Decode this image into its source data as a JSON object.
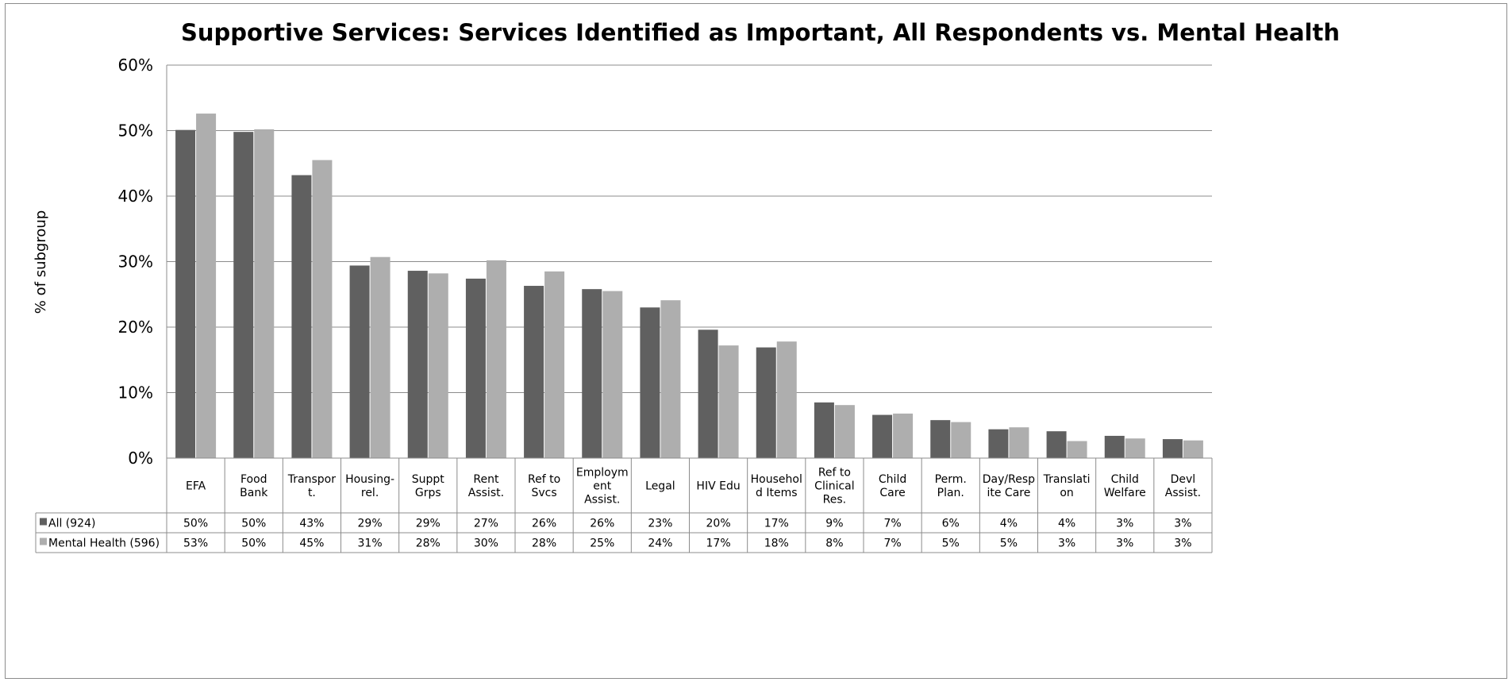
{
  "chart_data": {
    "type": "bar",
    "title": "Supportive Services: Services Identified as Important, All Respondents vs. Mental Health",
    "ylabel": "% of subgroup",
    "xlabel": "",
    "ylim": [
      0,
      60
    ],
    "yticks": [
      "0%",
      "10%",
      "20%",
      "30%",
      "40%",
      "50%",
      "60%"
    ],
    "grid": true,
    "legend": "table-left",
    "categories": [
      "EFA",
      "Food Bank",
      "Transport.",
      "Housing-rel.",
      "Suppt Grps",
      "Rent Assist.",
      "Ref to Svcs",
      "Employment Assist.",
      "Legal",
      "HIV Edu",
      "Household Items",
      "Ref to Clinical Res.",
      "Child Care",
      "Perm. Plan.",
      "Day/Respite Care",
      "Translation",
      "Child Welfare",
      "Devl Assist."
    ],
    "category_lines": [
      [
        "EFA"
      ],
      [
        "Food",
        "Bank"
      ],
      [
        "Transpor",
        "t."
      ],
      [
        "Housing-",
        "rel."
      ],
      [
        "Suppt",
        "Grps"
      ],
      [
        "Rent",
        "Assist."
      ],
      [
        "Ref to",
        "Svcs"
      ],
      [
        "Employm",
        "ent",
        "Assist."
      ],
      [
        "Legal"
      ],
      [
        "HIV Edu"
      ],
      [
        "Househol",
        "d Items"
      ],
      [
        "Ref to",
        "Clinical",
        "Res."
      ],
      [
        "Child",
        "Care"
      ],
      [
        "Perm.",
        "Plan."
      ],
      [
        "Day/Resp",
        "ite Care"
      ],
      [
        "Translati",
        "on"
      ],
      [
        "Child",
        "Welfare"
      ],
      [
        "Devl",
        "Assist."
      ]
    ],
    "series": [
      {
        "name": "All (924)",
        "color": "#606060",
        "values": [
          50.1,
          49.8,
          43.2,
          29.4,
          28.6,
          27.4,
          26.3,
          25.8,
          23.0,
          19.6,
          16.9,
          8.5,
          6.6,
          5.8,
          4.4,
          4.1,
          3.4,
          2.9
        ],
        "labels": [
          "50%",
          "50%",
          "43%",
          "29%",
          "29%",
          "27%",
          "26%",
          "26%",
          "23%",
          "20%",
          "17%",
          "9%",
          "7%",
          "6%",
          "4%",
          "4%",
          "3%",
          "3%"
        ]
      },
      {
        "name": "Mental Health (596)",
        "color": "#aeaeae",
        "values": [
          52.6,
          50.2,
          45.5,
          30.7,
          28.2,
          30.2,
          28.5,
          25.5,
          24.1,
          17.2,
          17.8,
          8.1,
          6.8,
          5.5,
          4.7,
          2.6,
          3.0,
          2.7
        ],
        "labels": [
          "53%",
          "50%",
          "45%",
          "31%",
          "28%",
          "30%",
          "28%",
          "25%",
          "24%",
          "17%",
          "18%",
          "8%",
          "7%",
          "5%",
          "5%",
          "3%",
          "3%",
          "3%"
        ]
      }
    ]
  }
}
